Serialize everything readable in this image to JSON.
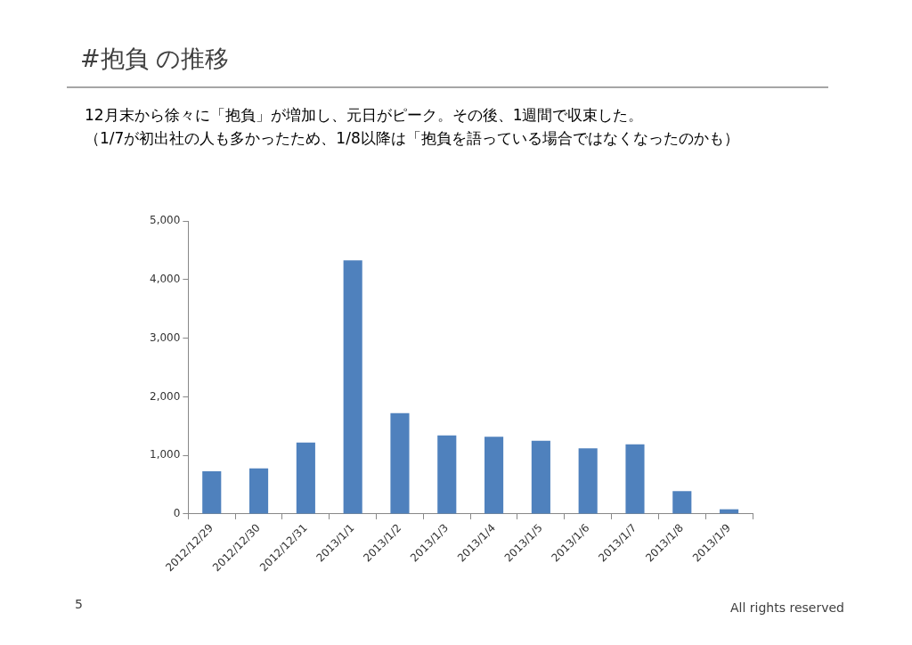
{
  "chart_data": {
    "type": "bar",
    "title": "#抱負 の推移",
    "subtitle": "12月末から徐々に「抱負」が増加し、元日がピーク。その後、1週間で収束した。",
    "annotations": [
      "（1/7が初出社の人も多かったため、1/8以降は「抱負を語っている場合ではなくなったのかも）",
      "5",
      "All rights reserved"
    ],
    "categories": [
      "2012/12/29",
      "2012/12/30",
      "2012/12/31",
      "2013/1/1",
      "2013/1/2",
      "2013/1/3",
      "2013/1/4",
      "2013/1/5",
      "2013/1/6",
      "2013/1/7",
      "2013/1/8",
      "2013/1/9"
    ],
    "values": [
      730,
      780,
      1220,
      4330,
      1720,
      1340,
      1320,
      1250,
      1120,
      1190,
      390,
      80
    ],
    "color": "#4f81bd",
    "ylim": [
      0,
      5000
    ],
    "yticks": [
      {
        "value": 0,
        "label": "0"
      },
      {
        "value": 1000,
        "label": "1,000"
      },
      {
        "value": 2000,
        "label": "2,000"
      },
      {
        "value": 3000,
        "label": "3,000"
      },
      {
        "value": 4000,
        "label": "4,000"
      },
      {
        "value": 5000,
        "label": "5,000"
      }
    ],
    "grid": false,
    "legend": false
  }
}
